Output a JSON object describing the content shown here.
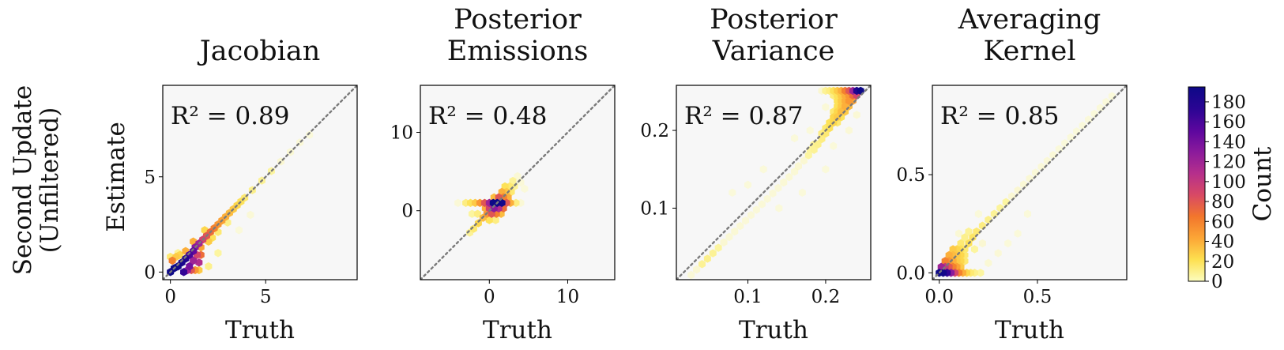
{
  "figure": {
    "row_label_lines": [
      "Second Update",
      "(Unfiltered)"
    ],
    "ylabel": "Estimate",
    "xlabel": "Truth",
    "colorbar": {
      "label": "Count",
      "min": 0,
      "max": 195,
      "ticks": [
        0,
        20,
        40,
        60,
        80,
        100,
        120,
        140,
        160,
        180
      ],
      "colormap": [
        "#fcfdbf",
        "#fde050",
        "#fca636",
        "#f2762c",
        "#d84965",
        "#b52f8c",
        "#8a1a9c",
        "#5b069e",
        "#2a0593",
        "#0d0887"
      ]
    },
    "one_to_one_line_color": "#7a7a7a",
    "panel_background": "#f7f7f7"
  },
  "chart_data": [
    {
      "type": "scatter",
      "style": "hexbin",
      "title_lines": [
        "Jacobian"
      ],
      "annotation": "R² = 0.89",
      "xlabel": "Truth",
      "ylabel": "Estimate",
      "xlim": [
        -0.4,
        9.8
      ],
      "ylim": [
        -0.4,
        9.8
      ],
      "xticks": [
        0,
        5
      ],
      "yticks": [
        0,
        5
      ],
      "tick_labels": [
        "0",
        "5"
      ],
      "r2": 0.89,
      "points": [
        [
          0.0,
          0.0,
          195
        ],
        [
          0.2,
          0.2,
          195
        ],
        [
          0.4,
          0.3,
          190
        ],
        [
          0.6,
          0.5,
          185
        ],
        [
          0.8,
          0.7,
          180
        ],
        [
          1.0,
          0.9,
          160
        ],
        [
          1.2,
          1.1,
          150
        ],
        [
          1.3,
          1.3,
          130
        ],
        [
          0.1,
          0.6,
          60
        ],
        [
          0.3,
          0.8,
          30
        ],
        [
          0.5,
          0.9,
          25
        ],
        [
          0.0,
          0.8,
          15
        ],
        [
          0.7,
          0.0,
          170
        ],
        [
          0.9,
          0.1,
          120
        ],
        [
          1.1,
          0.1,
          80
        ],
        [
          1.3,
          0.1,
          50
        ],
        [
          1.5,
          0.1,
          30
        ],
        [
          1.5,
          0.5,
          110
        ],
        [
          1.6,
          0.9,
          70
        ],
        [
          1.5,
          1.5,
          120
        ],
        [
          1.7,
          1.7,
          90
        ],
        [
          1.9,
          1.9,
          80
        ],
        [
          2.1,
          2.1,
          70
        ],
        [
          2.3,
          2.3,
          60
        ],
        [
          2.5,
          2.5,
          50
        ],
        [
          2.7,
          2.7,
          45
        ],
        [
          2.9,
          2.9,
          40
        ],
        [
          3.1,
          3.1,
          35
        ],
        [
          3.3,
          3.3,
          30
        ],
        [
          3.5,
          3.5,
          25
        ],
        [
          3.7,
          3.7,
          20
        ],
        [
          3.9,
          3.9,
          15
        ],
        [
          4.3,
          4.3,
          10
        ],
        [
          4.8,
          4.8,
          8
        ],
        [
          5.3,
          5.3,
          6
        ],
        [
          5.8,
          5.8,
          5
        ],
        [
          6.3,
          6.3,
          4
        ],
        [
          6.8,
          6.8,
          3
        ],
        [
          7.3,
          7.2,
          2
        ],
        [
          1.2,
          1.6,
          40
        ],
        [
          1.6,
          1.3,
          45
        ],
        [
          2.0,
          1.6,
          30
        ],
        [
          1.8,
          2.2,
          25
        ],
        [
          2.2,
          1.8,
          20
        ],
        [
          2.5,
          2.1,
          15
        ],
        [
          3.0,
          2.6,
          10
        ],
        [
          1.0,
          0.3,
          140
        ],
        [
          1.2,
          0.6,
          120
        ],
        [
          1.4,
          0.9,
          90
        ],
        [
          0.8,
          1.1,
          40
        ],
        [
          0.4,
          1.0,
          8
        ],
        [
          2.0,
          0.3,
          10
        ],
        [
          2.5,
          1.0,
          6
        ],
        [
          3.6,
          2.2,
          2
        ],
        [
          4.2,
          3.0,
          3
        ]
      ]
    },
    {
      "type": "scatter",
      "style": "hexbin",
      "title_lines": [
        "Posterior",
        "Emissions"
      ],
      "annotation": "R² = 0.48",
      "xlabel": "Truth",
      "ylabel": "",
      "xlim": [
        -8.8,
        16
      ],
      "ylim": [
        -8.8,
        16
      ],
      "xticks": [
        0,
        10
      ],
      "yticks": [
        0,
        10
      ],
      "tick_labels": [
        "0",
        "10"
      ],
      "r2": 0.48,
      "points": [
        [
          0.5,
          1.0,
          195
        ],
        [
          1.0,
          1.0,
          195
        ],
        [
          1.6,
          1.0,
          190
        ],
        [
          0.0,
          1.0,
          120
        ],
        [
          -0.6,
          1.0,
          80
        ],
        [
          2.2,
          1.0,
          80
        ],
        [
          2.7,
          1.0,
          40
        ],
        [
          -1.2,
          1.0,
          50
        ],
        [
          -1.8,
          1.0,
          30
        ],
        [
          -2.4,
          1.0,
          20
        ],
        [
          -3.0,
          1.0,
          12
        ],
        [
          0.6,
          0.3,
          130
        ],
        [
          1.2,
          0.3,
          110
        ],
        [
          0.0,
          0.3,
          90
        ],
        [
          1.8,
          0.3,
          70
        ],
        [
          -0.5,
          0.3,
          40
        ],
        [
          0.3,
          -0.4,
          80
        ],
        [
          0.9,
          -0.4,
          60
        ],
        [
          -0.3,
          -0.4,
          50
        ],
        [
          1.5,
          -0.4,
          35
        ],
        [
          -0.8,
          -0.9,
          35
        ],
        [
          -1.4,
          -1.6,
          25
        ],
        [
          -2.0,
          -2.3,
          15
        ],
        [
          -2.5,
          -2.8,
          8
        ],
        [
          1.2,
          1.7,
          80
        ],
        [
          1.8,
          1.7,
          60
        ],
        [
          2.4,
          1.7,
          40
        ],
        [
          0.6,
          1.7,
          35
        ],
        [
          1.6,
          2.4,
          40
        ],
        [
          2.2,
          2.4,
          30
        ],
        [
          2.8,
          2.4,
          15
        ],
        [
          2.0,
          3.1,
          20
        ],
        [
          2.6,
          3.1,
          15
        ],
        [
          3.2,
          3.1,
          8
        ],
        [
          3.0,
          3.8,
          8
        ],
        [
          3.6,
          4.4,
          4
        ],
        [
          4.0,
          3.6,
          3
        ],
        [
          4.5,
          2.8,
          2
        ],
        [
          -1.5,
          -0.4,
          12
        ],
        [
          -2.2,
          -0.4,
          6
        ],
        [
          0.0,
          -1.2,
          20
        ],
        [
          0.8,
          -1.2,
          12
        ],
        [
          3.4,
          1.0,
          12
        ],
        [
          4.0,
          1.0,
          4
        ],
        [
          -4.0,
          1.0,
          3
        ]
      ]
    },
    {
      "type": "scatter",
      "style": "hexbin",
      "title_lines": [
        "Posterior",
        "Variance"
      ],
      "annotation": "R² = 0.87",
      "xlabel": "Truth",
      "ylabel": "",
      "xlim": [
        0.008,
        0.258
      ],
      "ylim": [
        0.008,
        0.258
      ],
      "xticks": [
        0.1,
        0.2
      ],
      "yticks": [
        0.1,
        0.2
      ],
      "tick_labels": [
        "0.1",
        "0.2"
      ],
      "r2": 0.87,
      "points": [
        [
          0.245,
          0.251,
          195
        ],
        [
          0.24,
          0.251,
          180
        ],
        [
          0.235,
          0.251,
          120
        ],
        [
          0.23,
          0.251,
          80
        ],
        [
          0.225,
          0.251,
          60
        ],
        [
          0.22,
          0.251,
          40
        ],
        [
          0.215,
          0.251,
          30
        ],
        [
          0.21,
          0.251,
          20
        ],
        [
          0.205,
          0.251,
          12
        ],
        [
          0.2,
          0.251,
          8
        ],
        [
          0.195,
          0.251,
          5
        ],
        [
          0.24,
          0.245,
          90
        ],
        [
          0.235,
          0.245,
          70
        ],
        [
          0.23,
          0.245,
          50
        ],
        [
          0.225,
          0.245,
          40
        ],
        [
          0.22,
          0.245,
          30
        ],
        [
          0.215,
          0.245,
          20
        ],
        [
          0.21,
          0.245,
          12
        ],
        [
          0.23,
          0.238,
          50
        ],
        [
          0.225,
          0.238,
          40
        ],
        [
          0.235,
          0.238,
          45
        ],
        [
          0.22,
          0.238,
          30
        ],
        [
          0.215,
          0.238,
          20
        ],
        [
          0.225,
          0.231,
          40
        ],
        [
          0.23,
          0.231,
          35
        ],
        [
          0.22,
          0.231,
          30
        ],
        [
          0.215,
          0.231,
          20
        ],
        [
          0.22,
          0.224,
          35
        ],
        [
          0.225,
          0.224,
          30
        ],
        [
          0.215,
          0.224,
          25
        ],
        [
          0.21,
          0.224,
          15
        ],
        [
          0.215,
          0.217,
          30
        ],
        [
          0.21,
          0.217,
          25
        ],
        [
          0.22,
          0.217,
          20
        ],
        [
          0.21,
          0.21,
          25
        ],
        [
          0.205,
          0.21,
          20
        ],
        [
          0.215,
          0.21,
          15
        ],
        [
          0.205,
          0.203,
          20
        ],
        [
          0.2,
          0.203,
          15
        ],
        [
          0.2,
          0.196,
          15
        ],
        [
          0.195,
          0.196,
          12
        ],
        [
          0.195,
          0.189,
          12
        ],
        [
          0.19,
          0.182,
          10
        ],
        [
          0.185,
          0.182,
          8
        ],
        [
          0.185,
          0.175,
          8
        ],
        [
          0.18,
          0.175,
          6
        ],
        [
          0.178,
          0.168,
          6
        ],
        [
          0.172,
          0.161,
          5
        ],
        [
          0.165,
          0.154,
          5
        ],
        [
          0.16,
          0.147,
          4
        ],
        [
          0.153,
          0.14,
          4
        ],
        [
          0.146,
          0.133,
          4
        ],
        [
          0.139,
          0.126,
          3
        ],
        [
          0.132,
          0.119,
          3
        ],
        [
          0.125,
          0.112,
          3
        ],
        [
          0.118,
          0.105,
          3
        ],
        [
          0.111,
          0.098,
          3
        ],
        [
          0.104,
          0.091,
          3
        ],
        [
          0.097,
          0.084,
          3
        ],
        [
          0.09,
          0.077,
          4
        ],
        [
          0.083,
          0.07,
          4
        ],
        [
          0.076,
          0.063,
          4
        ],
        [
          0.069,
          0.056,
          5
        ],
        [
          0.062,
          0.049,
          6
        ],
        [
          0.055,
          0.042,
          8
        ],
        [
          0.048,
          0.035,
          10
        ],
        [
          0.041,
          0.028,
          8
        ],
        [
          0.034,
          0.021,
          5
        ],
        [
          0.027,
          0.014,
          3
        ],
        [
          0.21,
          0.18,
          2
        ],
        [
          0.2,
          0.15,
          2
        ],
        [
          0.18,
          0.2,
          2
        ],
        [
          0.16,
          0.19,
          2
        ],
        [
          0.12,
          0.15,
          2
        ],
        [
          0.1,
          0.13,
          2
        ],
        [
          0.08,
          0.12,
          2
        ],
        [
          0.14,
          0.1,
          2
        ],
        [
          0.17,
          0.12,
          2
        ],
        [
          0.23,
          0.2,
          3
        ],
        [
          0.24,
          0.22,
          4
        ],
        [
          0.2,
          0.23,
          3
        ]
      ]
    },
    {
      "type": "scatter",
      "style": "hexbin",
      "title_lines": [
        "Averaging",
        "Kernel"
      ],
      "annotation": "R² = 0.85",
      "xlabel": "Truth",
      "ylabel": "",
      "xlim": [
        -0.035,
        0.955
      ],
      "ylim": [
        -0.035,
        0.955
      ],
      "xticks": [
        0.0,
        0.5
      ],
      "yticks": [
        0.0,
        0.5
      ],
      "tick_labels": [
        "0.0",
        "0.5"
      ],
      "r2": 0.85,
      "points": [
        [
          0.0,
          0.0,
          195
        ],
        [
          0.02,
          0.0,
          190
        ],
        [
          0.04,
          0.0,
          170
        ],
        [
          0.06,
          0.0,
          130
        ],
        [
          0.08,
          0.0,
          90
        ],
        [
          0.1,
          0.0,
          60
        ],
        [
          0.12,
          0.0,
          40
        ],
        [
          0.14,
          0.0,
          25
        ],
        [
          0.16,
          0.0,
          15
        ],
        [
          0.18,
          0.0,
          10
        ],
        [
          0.21,
          0.0,
          6
        ],
        [
          0.01,
          0.03,
          120
        ],
        [
          0.03,
          0.03,
          100
        ],
        [
          0.05,
          0.03,
          80
        ],
        [
          0.07,
          0.03,
          60
        ],
        [
          0.09,
          0.03,
          45
        ],
        [
          0.11,
          0.03,
          30
        ],
        [
          0.03,
          0.06,
          60
        ],
        [
          0.05,
          0.06,
          50
        ],
        [
          0.07,
          0.06,
          40
        ],
        [
          0.09,
          0.06,
          30
        ],
        [
          0.11,
          0.06,
          25
        ],
        [
          0.13,
          0.06,
          15
        ],
        [
          0.05,
          0.09,
          40
        ],
        [
          0.07,
          0.09,
          35
        ],
        [
          0.09,
          0.09,
          30
        ],
        [
          0.11,
          0.09,
          25
        ],
        [
          0.13,
          0.09,
          15
        ],
        [
          0.07,
          0.12,
          30
        ],
        [
          0.09,
          0.12,
          25
        ],
        [
          0.11,
          0.12,
          20
        ],
        [
          0.13,
          0.12,
          15
        ],
        [
          0.15,
          0.15,
          20
        ],
        [
          0.11,
          0.15,
          15
        ],
        [
          0.17,
          0.18,
          18
        ],
        [
          0.13,
          0.18,
          10
        ],
        [
          0.19,
          0.21,
          15
        ],
        [
          0.15,
          0.21,
          8
        ],
        [
          0.22,
          0.24,
          12
        ],
        [
          0.25,
          0.27,
          10
        ],
        [
          0.28,
          0.3,
          8
        ],
        [
          0.31,
          0.33,
          7
        ],
        [
          0.34,
          0.36,
          6
        ],
        [
          0.37,
          0.39,
          5
        ],
        [
          0.4,
          0.42,
          5
        ],
        [
          0.43,
          0.45,
          4
        ],
        [
          0.46,
          0.48,
          4
        ],
        [
          0.49,
          0.51,
          3
        ],
        [
          0.52,
          0.54,
          3
        ],
        [
          0.55,
          0.57,
          3
        ],
        [
          0.58,
          0.6,
          3
        ],
        [
          0.61,
          0.63,
          2
        ],
        [
          0.64,
          0.66,
          2
        ],
        [
          0.67,
          0.69,
          2
        ],
        [
          0.7,
          0.72,
          2
        ],
        [
          0.73,
          0.75,
          2
        ],
        [
          0.76,
          0.78,
          2
        ],
        [
          0.79,
          0.81,
          2
        ],
        [
          0.82,
          0.84,
          2
        ],
        [
          0.85,
          0.87,
          2
        ],
        [
          0.88,
          0.9,
          2
        ],
        [
          0.3,
          0.1,
          3
        ],
        [
          0.25,
          0.05,
          4
        ],
        [
          0.35,
          0.15,
          2
        ],
        [
          0.2,
          0.3,
          2
        ],
        [
          0.4,
          0.2,
          2
        ],
        [
          0.45,
          0.3,
          2
        ],
        [
          0.1,
          0.2,
          4
        ],
        [
          0.18,
          0.12,
          6
        ],
        [
          0.22,
          0.15,
          5
        ]
      ]
    }
  ]
}
